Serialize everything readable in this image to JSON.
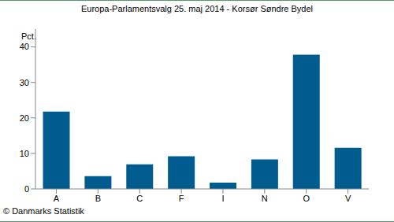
{
  "chart_data": {
    "type": "bar",
    "title": "Europa-Parlamentsvalg 25. maj 2014 - Korsør Søndre Bydel",
    "ylabel": "Pct.",
    "footer": "© Danmarks Statistik",
    "categories": [
      "A",
      "B",
      "C",
      "F",
      "I",
      "N",
      "O",
      "V"
    ],
    "values": [
      21.8,
      3.6,
      6.9,
      9.2,
      1.8,
      8.3,
      37.8,
      11.6
    ],
    "color": "#005b8e",
    "ylim": [
      0,
      45
    ],
    "yticks": [
      0,
      10,
      20,
      30,
      40
    ],
    "grid": false
  }
}
